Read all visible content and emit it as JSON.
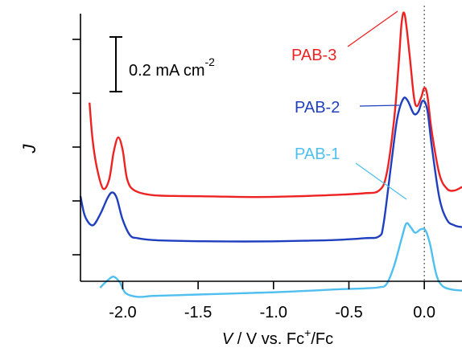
{
  "chart_data": {
    "type": "line",
    "x_axis": {
      "label_prefix": "V",
      "label_rest": " / V vs. Fc",
      "label_sup": "+",
      "label_suffix": "/Fc",
      "range": [
        -2.28,
        0.25
      ],
      "ticks": [
        -2.0,
        -1.5,
        -1.0,
        -0.5,
        0.0
      ],
      "tick_labels": [
        "-2.0",
        "-1.5",
        "-1.0",
        "-0.5",
        "0.0"
      ]
    },
    "y_axis": {
      "label": "J",
      "tick_labels_shown": false,
      "tick_count": 5
    },
    "reference_line": {
      "x": 0.0,
      "style": "dotted",
      "color": "#555555"
    },
    "scale_bar": {
      "value_text": "0.2 mA cm",
      "unit_sup": "-2"
    },
    "series": [
      {
        "name": "PAB-3",
        "color": "#ee2222",
        "points": [
          [
            -2.22,
            0.94
          ],
          [
            -2.2,
            0.74
          ],
          [
            -2.17,
            0.58
          ],
          [
            -2.13,
            0.47
          ],
          [
            -2.09,
            0.52
          ],
          [
            -2.06,
            0.67
          ],
          [
            -2.03,
            0.75
          ],
          [
            -2.0,
            0.68
          ],
          [
            -1.97,
            0.52
          ],
          [
            -1.92,
            0.46
          ],
          [
            -1.8,
            0.435
          ],
          [
            -1.6,
            0.43
          ],
          [
            -1.4,
            0.428
          ],
          [
            -1.2,
            0.425
          ],
          [
            -1.0,
            0.426
          ],
          [
            -0.8,
            0.43
          ],
          [
            -0.6,
            0.436
          ],
          [
            -0.4,
            0.445
          ],
          [
            -0.3,
            0.46
          ],
          [
            -0.25,
            0.55
          ],
          [
            -0.2,
            0.85
          ],
          [
            -0.17,
            1.15
          ],
          [
            -0.15,
            1.38
          ],
          [
            -0.13,
            1.42
          ],
          [
            -0.1,
            1.22
          ],
          [
            -0.07,
            0.98
          ],
          [
            -0.05,
            0.92
          ],
          [
            -0.02,
            0.97
          ],
          [
            0.0,
            1.02
          ],
          [
            0.02,
            0.98
          ],
          [
            0.05,
            0.78
          ],
          [
            0.1,
            0.55
          ],
          [
            0.15,
            0.47
          ],
          [
            0.2,
            0.46
          ],
          [
            0.25,
            0.48
          ]
        ]
      },
      {
        "name": "PAB-2",
        "color": "#1f3fbf",
        "points": [
          [
            -2.28,
            0.43
          ],
          [
            -2.25,
            0.32
          ],
          [
            -2.2,
            0.27
          ],
          [
            -2.15,
            0.33
          ],
          [
            -2.1,
            0.42
          ],
          [
            -2.07,
            0.45
          ],
          [
            -2.04,
            0.42
          ],
          [
            -2.0,
            0.3
          ],
          [
            -1.95,
            0.215
          ],
          [
            -1.9,
            0.2
          ],
          [
            -1.8,
            0.19
          ],
          [
            -1.6,
            0.185
          ],
          [
            -1.4,
            0.183
          ],
          [
            -1.2,
            0.182
          ],
          [
            -1.0,
            0.183
          ],
          [
            -0.8,
            0.186
          ],
          [
            -0.6,
            0.19
          ],
          [
            -0.4,
            0.2
          ],
          [
            -0.3,
            0.21
          ],
          [
            -0.27,
            0.28
          ],
          [
            -0.22,
            0.6
          ],
          [
            -0.18,
            0.85
          ],
          [
            -0.14,
            0.96
          ],
          [
            -0.11,
            0.95
          ],
          [
            -0.07,
            0.88
          ],
          [
            -0.04,
            0.89
          ],
          [
            -0.01,
            0.95
          ],
          [
            0.02,
            0.9
          ],
          [
            0.05,
            0.7
          ],
          [
            0.1,
            0.42
          ],
          [
            0.15,
            0.3
          ],
          [
            0.2,
            0.27
          ],
          [
            0.25,
            0.26
          ]
        ]
      },
      {
        "name": "PAB-1",
        "color": "#4fbff0",
        "points": [
          [
            -2.15,
            -0.07
          ],
          [
            -2.1,
            -0.03
          ],
          [
            -2.06,
            -0.01
          ],
          [
            -2.02,
            -0.04
          ],
          [
            -1.98,
            -0.1
          ],
          [
            -1.9,
            -0.12
          ],
          [
            -1.8,
            -0.115
          ],
          [
            -1.6,
            -0.11
          ],
          [
            -1.4,
            -0.105
          ],
          [
            -1.2,
            -0.1
          ],
          [
            -1.0,
            -0.095
          ],
          [
            -0.8,
            -0.088
          ],
          [
            -0.6,
            -0.08
          ],
          [
            -0.4,
            -0.074
          ],
          [
            -0.3,
            -0.068
          ],
          [
            -0.25,
            -0.05
          ],
          [
            -0.2,
            0.05
          ],
          [
            -0.15,
            0.2
          ],
          [
            -0.12,
            0.28
          ],
          [
            -0.09,
            0.26
          ],
          [
            -0.06,
            0.23
          ],
          [
            -0.02,
            0.25
          ],
          [
            0.01,
            0.24
          ],
          [
            0.04,
            0.16
          ],
          [
            0.08,
            0.0
          ],
          [
            0.12,
            -0.06
          ],
          [
            0.18,
            -0.08
          ],
          [
            0.25,
            -0.085
          ]
        ]
      }
    ]
  }
}
